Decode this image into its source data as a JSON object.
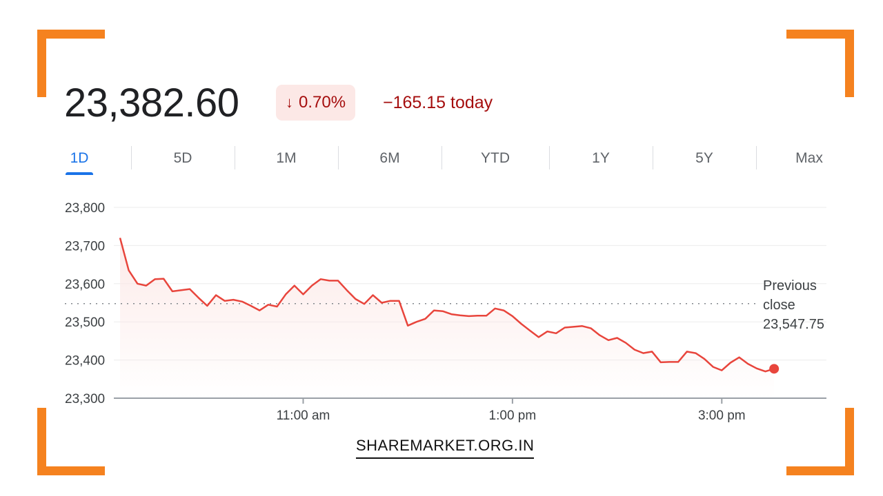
{
  "header": {
    "price": "23,382.60",
    "change_arrow": "↓",
    "change_percent": "0.70%",
    "change_today": "−165.15 today"
  },
  "tabs": [
    {
      "label": "1D",
      "active": true
    },
    {
      "label": "5D",
      "active": false
    },
    {
      "label": "1M",
      "active": false
    },
    {
      "label": "6M",
      "active": false
    },
    {
      "label": "YTD",
      "active": false
    },
    {
      "label": "1Y",
      "active": false
    },
    {
      "label": "5Y",
      "active": false
    },
    {
      "label": "Max",
      "active": false
    }
  ],
  "colors": {
    "line": "#e8453c",
    "negative_text": "#a50e0e",
    "badge_bg": "#fce8e6",
    "accent": "#1a73e8",
    "corner": "#f5821f"
  },
  "chart_data": {
    "type": "line",
    "title": "",
    "xlabel": "",
    "ylabel": "",
    "ylim": [
      23300,
      23800
    ],
    "y_ticks": [
      23300,
      23400,
      23500,
      23600,
      23700,
      23800
    ],
    "y_tick_labels": [
      "23,300",
      "23,400",
      "23,500",
      "23,600",
      "23,700",
      "23,800"
    ],
    "x_range_hours": [
      "09:15",
      "16:00"
    ],
    "x_ticks": [
      {
        "time": "11:00",
        "label": "11:00 am"
      },
      {
        "time": "13:00",
        "label": "1:00 pm"
      },
      {
        "time": "15:00",
        "label": "3:00 pm"
      }
    ],
    "reference_line": {
      "value": 23547.75,
      "label_lines": [
        "Previous",
        "close",
        "23,547.75"
      ],
      "style": "dotted"
    },
    "last_point_marker": true,
    "series": [
      {
        "x": [
          "09:15",
          "09:20",
          "09:25",
          "09:30",
          "09:35",
          "09:40",
          "09:45",
          "09:50",
          "09:55",
          "10:00",
          "10:05",
          "10:10",
          "10:15",
          "10:20",
          "10:25",
          "10:30",
          "10:35",
          "10:40",
          "10:45",
          "10:50",
          "10:55",
          "11:00",
          "11:05",
          "11:10",
          "11:15",
          "11:20",
          "11:25",
          "11:30",
          "11:35",
          "11:40",
          "11:45",
          "11:50",
          "11:55",
          "12:00",
          "12:05",
          "12:10",
          "12:15",
          "12:20",
          "12:25",
          "12:30",
          "12:35",
          "12:40",
          "12:45",
          "12:50",
          "12:55",
          "13:00",
          "13:05",
          "13:10",
          "13:15",
          "13:20",
          "13:25",
          "13:30",
          "13:35",
          "13:40",
          "13:45",
          "13:50",
          "13:55",
          "14:00",
          "14:05",
          "14:10",
          "14:15",
          "14:20",
          "14:25",
          "14:30",
          "14:35",
          "14:40",
          "14:45",
          "14:50",
          "14:55",
          "15:00",
          "15:05",
          "15:10",
          "15:15",
          "15:20",
          "15:25",
          "15:30"
        ],
        "values": [
          23720,
          23635,
          23600,
          23595,
          23612,
          23613,
          23580,
          23583,
          23586,
          23563,
          23542,
          23570,
          23555,
          23558,
          23553,
          23542,
          23530,
          23545,
          23540,
          23572,
          23595,
          23572,
          23595,
          23612,
          23608,
          23608,
          23583,
          23560,
          23547,
          23570,
          23550,
          23555,
          23555,
          23490,
          23500,
          23508,
          23530,
          23528,
          23520,
          23517,
          23515,
          23516,
          23516,
          23535,
          23530,
          23515,
          23495,
          23477,
          23460,
          23475,
          23470,
          23485,
          23487,
          23489,
          23483,
          23465,
          23452,
          23458,
          23445,
          23427,
          23418,
          23422,
          23394,
          23395,
          23395,
          23422,
          23418,
          23403,
          23382,
          23373,
          23393,
          23407,
          23390,
          23378,
          23370,
          23377
        ]
      }
    ]
  },
  "watermark": "SHAREMARKET.ORG.IN"
}
